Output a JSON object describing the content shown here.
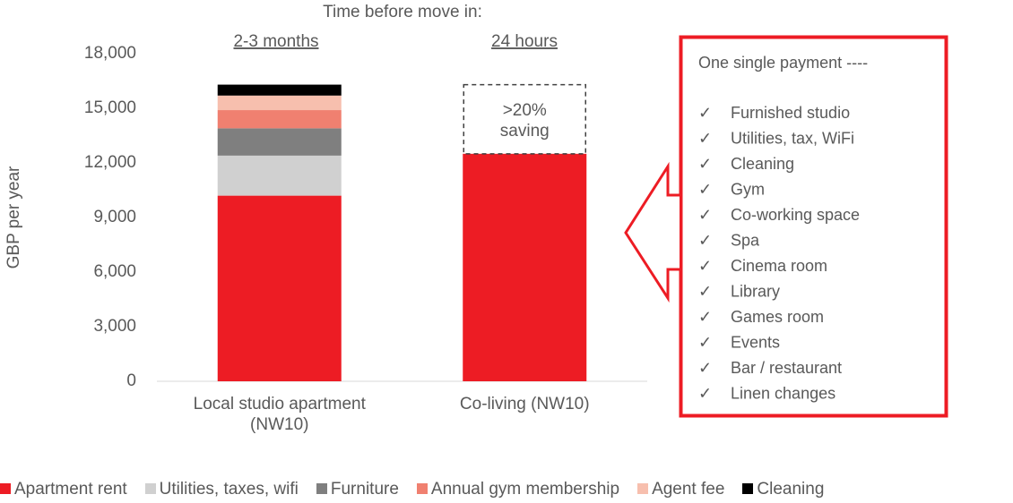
{
  "chart_data": {
    "type": "stacked_bar",
    "header": "Time before move in:",
    "category_notes": [
      "2-3 months",
      "24 hours"
    ],
    "ylabel": "GBP per year",
    "categories": [
      "Local studio apartment (NW10)",
      "Co-living (NW10)"
    ],
    "series": [
      {
        "name": "Apartment rent",
        "color": "#ed1c24",
        "values": [
          10200,
          12500
        ]
      },
      {
        "name": "Utilities, taxes, wifi",
        "color": "#d0d0d0",
        "values": [
          2200,
          0
        ]
      },
      {
        "name": "Furniture",
        "color": "#7f7f7f",
        "values": [
          1500,
          0
        ]
      },
      {
        "name": "Annual gym membership",
        "color": "#f08070",
        "values": [
          1000,
          0
        ]
      },
      {
        "name": "Agent fee",
        "color": "#f7bfae",
        "values": [
          800,
          0
        ]
      },
      {
        "name": "Cleaning",
        "color": "#000000",
        "values": [
          600,
          0
        ]
      }
    ],
    "ylim": [
      0,
      18000
    ],
    "yticks": [
      0,
      {
        "value": 3000,
        "label": "3,000"
      },
      {
        "value": 6000,
        "label": "6,000"
      },
      {
        "value": 9000,
        "label": "9,000"
      },
      {
        "value": 12000,
        "label": "12,000"
      },
      {
        "value": 15000,
        "label": "15,000"
      },
      {
        "value": 18000,
        "label": "18,000"
      }
    ],
    "saving_label": ">20% saving",
    "box_title": "One single payment ----",
    "check": "✓",
    "box_items": [
      "Furnished studio",
      "Utilities, tax, WiFi",
      "Cleaning",
      "Gym",
      "Co-working space",
      "Spa",
      "Cinema room",
      "Library",
      "Games room",
      "Events",
      "Bar / restaurant",
      "Linen changes"
    ]
  }
}
